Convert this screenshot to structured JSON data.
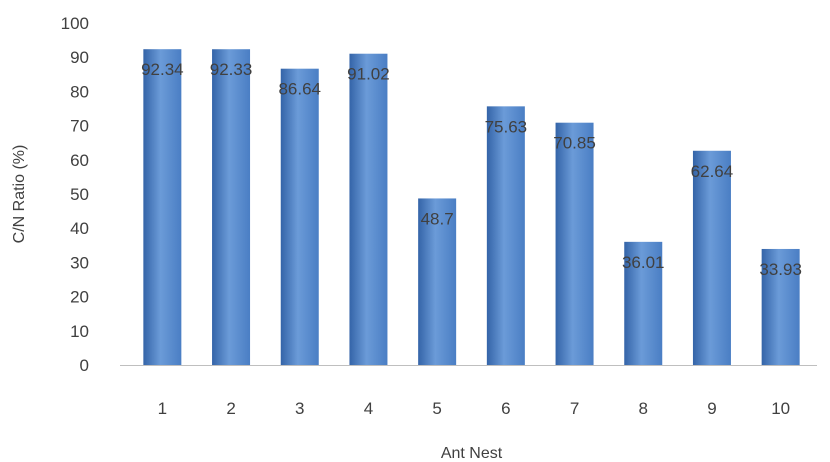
{
  "chart_data": {
    "type": "bar",
    "title": "",
    "xlabel": "Ant Nest",
    "ylabel": "C/N Ratio (%)",
    "categories": [
      "1",
      "2",
      "3",
      "4",
      "5",
      "6",
      "7",
      "8",
      "9",
      "10"
    ],
    "values": [
      92.34,
      92.33,
      86.64,
      91.02,
      48.7,
      75.63,
      70.85,
      36.01,
      62.64,
      33.93
    ],
    "data_labels": [
      "92.34",
      "92.33",
      "86.64",
      "91.02",
      "48.7",
      "75.63",
      "70.85",
      "36.01",
      "62.64",
      "33.93"
    ],
    "ylim": [
      0,
      100
    ],
    "yticks": [
      "0",
      "10",
      "20",
      "30",
      "40",
      "50",
      "60",
      "70",
      "80",
      "90",
      "100"
    ],
    "grid": false,
    "legend": "none",
    "bar_color": "#4a7ec4",
    "bar_color_light": "#6b9bd8",
    "bar_color_dark": "#3464a8",
    "axis_color": "#bfbfbf",
    "text_color": "#404040"
  }
}
